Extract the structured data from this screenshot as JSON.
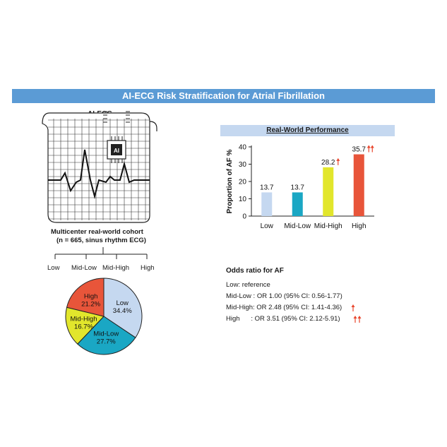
{
  "title": "AI-ECG Risk Stratification for Atrial Fibrillation",
  "ecg_label": "AI-ECG",
  "chip_label": "AI",
  "cohort": {
    "line1": "Multicenter real-world cohort",
    "line2": "(n = 665, sinus rhythm ECG)"
  },
  "groups": [
    "Low",
    "Mid-Low",
    "Mid-High",
    "High"
  ],
  "pie": {
    "slices": [
      {
        "name": "Low",
        "value": 34.4,
        "label": "34.4%",
        "color": "#c5d8f0"
      },
      {
        "name": "Mid-Low",
        "value": 27.7,
        "label": "27.7%",
        "color": "#1aa7c4"
      },
      {
        "name": "Mid-High",
        "value": 16.7,
        "label": "16.7%",
        "color": "#e2e62c"
      },
      {
        "name": "High",
        "value": 21.2,
        "label": "21.2%",
        "color": "#e8553a"
      }
    ]
  },
  "performance_title": "Real-World Performance",
  "chart_data": {
    "type": "bar",
    "categories": [
      "Low",
      "Mid-Low",
      "Mid-High",
      "High"
    ],
    "values": [
      13.7,
      13.7,
      28.2,
      35.7
    ],
    "value_labels": [
      "13.7",
      "13.7",
      "28.2",
      "35.7"
    ],
    "colors": [
      "#c5d8f0",
      "#1aa7c4",
      "#e2e62c",
      "#e8553a"
    ],
    "ylabel": "Proportion of AF %",
    "ylim": [
      0,
      40
    ],
    "yticks": [
      "0",
      "10",
      "20",
      "30",
      "40"
    ],
    "up_arrows": [
      0,
      0,
      1,
      2
    ],
    "grid": false
  },
  "odds": {
    "title": "Odds ratio for AF",
    "lines": [
      {
        "text": "Low: reference",
        "arrows": 0
      },
      {
        "text": "Mid-Low : OR 1.00 (95% CI: 0.56-1.77)",
        "arrows": 0
      },
      {
        "text": "Mid-High: OR 2.48 (95% CI: 1.41-4.36)",
        "arrows": 1
      },
      {
        "text": "High      : OR 3.51 (95% CI: 2.12-5.91)",
        "arrows": 2
      }
    ]
  }
}
